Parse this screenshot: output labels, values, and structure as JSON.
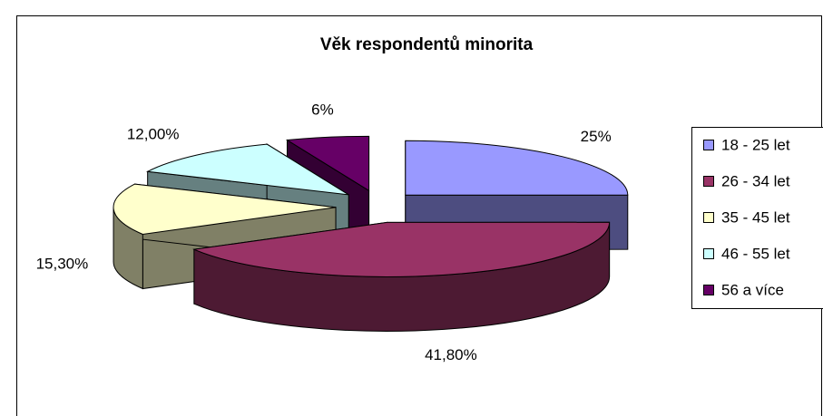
{
  "chart_data": {
    "type": "pie",
    "title": "Věk respondentů minorita",
    "categories": [
      "18 - 25 let",
      "26 - 34 let",
      "35 - 45 let",
      "46 - 55 let",
      "56 a více"
    ],
    "values": [
      25,
      41.8,
      15.3,
      12,
      6
    ],
    "value_labels": [
      "25%",
      "41,80%",
      "15,30%",
      "12,00%",
      "6%"
    ],
    "colors": [
      "#9999ff",
      "#993366",
      "#ffffcc",
      "#ccffff",
      "#660066"
    ],
    "legend": "right"
  }
}
